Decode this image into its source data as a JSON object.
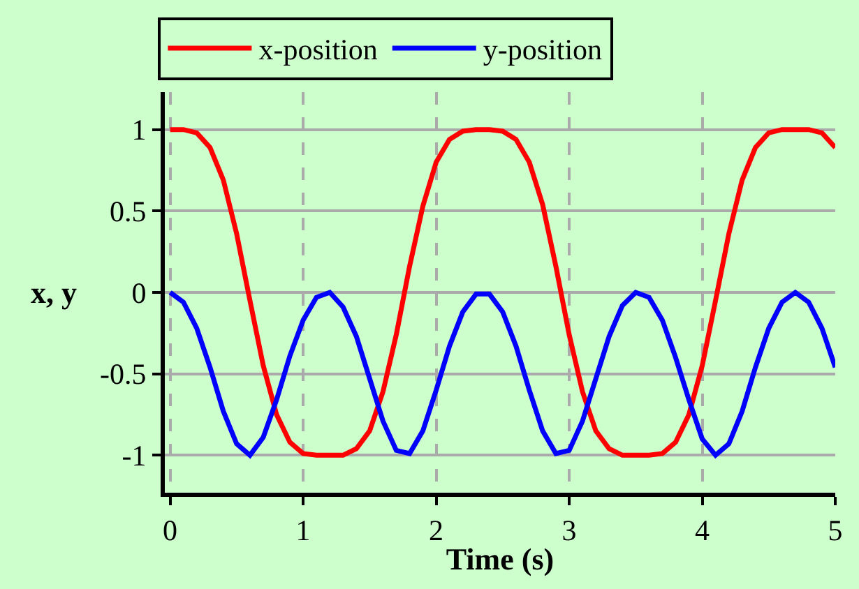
{
  "chart_data": {
    "type": "line",
    "xlabel": "Time (s)",
    "ylabel": "x, y",
    "x": [
      0,
      0.1,
      0.2,
      0.3,
      0.4,
      0.5,
      0.6,
      0.7,
      0.8,
      0.9,
      1.0,
      1.1,
      1.2,
      1.3,
      1.4,
      1.5,
      1.6,
      1.7,
      1.8,
      1.9,
      2.0,
      2.1,
      2.2,
      2.3,
      2.4,
      2.5,
      2.6,
      2.7,
      2.8,
      2.9,
      3.0,
      3.1,
      3.2,
      3.3,
      3.4,
      3.5,
      3.6,
      3.7,
      3.8,
      3.9,
      4.0,
      4.1,
      4.2,
      4.3,
      4.4,
      4.5,
      4.6,
      4.7,
      4.8,
      4.9,
      5.0
    ],
    "series": [
      {
        "name": "x-position",
        "color": "#ff0000",
        "values": [
          1,
          1,
          0.98,
          0.89,
          0.69,
          0.36,
          -0.05,
          -0.45,
          -0.75,
          -0.92,
          -0.99,
          -1,
          -1,
          -1,
          -0.96,
          -0.85,
          -0.61,
          -0.26,
          0.16,
          0.53,
          0.8,
          0.94,
          0.99,
          1,
          1,
          0.99,
          0.94,
          0.8,
          0.54,
          0.16,
          -0.26,
          -0.61,
          -0.85,
          -0.96,
          -1,
          -1,
          -1,
          -0.99,
          -0.92,
          -0.75,
          -0.45,
          -0.05,
          0.36,
          0.69,
          0.89,
          0.98,
          1,
          1,
          1,
          0.98,
          0.89
        ]
      },
      {
        "name": "y-position",
        "color": "#0000ff",
        "values": [
          0,
          -0.06,
          -0.22,
          -0.46,
          -0.73,
          -0.93,
          -1,
          -0.89,
          -0.66,
          -0.39,
          -0.17,
          -0.03,
          0,
          -0.09,
          -0.27,
          -0.53,
          -0.79,
          -0.97,
          -0.99,
          -0.85,
          -0.6,
          -0.33,
          -0.12,
          -0.01,
          -0.01,
          -0.12,
          -0.33,
          -0.6,
          -0.85,
          -0.99,
          -0.97,
          -0.79,
          -0.53,
          -0.27,
          -0.08,
          0,
          -0.03,
          -0.17,
          -0.4,
          -0.66,
          -0.9,
          -1,
          -0.93,
          -0.73,
          -0.46,
          -0.22,
          -0.06,
          0,
          -0.06,
          -0.22,
          -0.46
        ]
      }
    ],
    "xlim": [
      -0.04,
      5.0
    ],
    "ylim": [
      -1.23,
      1.23
    ],
    "xticks": [
      0,
      1,
      2,
      3,
      4,
      5
    ],
    "yticks": [
      -1,
      -0.5,
      0,
      0.5,
      1
    ],
    "grid": true,
    "legend": "top",
    "marker": "none",
    "line_style": "solid"
  }
}
